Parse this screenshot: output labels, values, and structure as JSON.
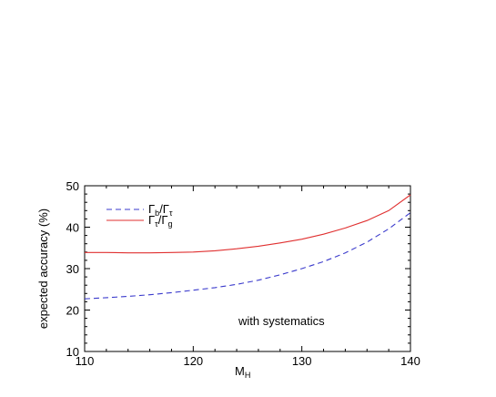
{
  "chart_data": {
    "type": "line",
    "title": "",
    "xlabel": "M",
    "xlabel_sub": "H",
    "ylabel": "expected accuracy (%)",
    "xlim": [
      110,
      140
    ],
    "ylim": [
      10,
      50
    ],
    "xticks": [
      "110",
      "120",
      "130",
      "140"
    ],
    "yticks": [
      "10",
      "20",
      "30",
      "40",
      "50"
    ],
    "grid": false,
    "legend_position": "top-left",
    "annotation": "with systematics",
    "series": [
      {
        "name": "Γb/Γτ",
        "name_main": "Γ",
        "name_sub1": "b",
        "name_mid": "/Γ",
        "name_sub2": "τ",
        "color": "#3a3acc",
        "style": "dashed",
        "x": [
          110,
          112,
          114,
          116,
          118,
          120,
          122,
          124,
          126,
          128,
          130,
          132,
          134,
          136,
          138,
          140
        ],
        "y": [
          22.7,
          23.0,
          23.3,
          23.7,
          24.2,
          24.8,
          25.4,
          26.2,
          27.2,
          28.5,
          30.0,
          31.7,
          33.8,
          36.4,
          39.6,
          43.5
        ]
      },
      {
        "name": "Γτ/Γg",
        "name_main": "Γ",
        "name_sub1": "τ",
        "name_mid": "/Γ",
        "name_sub2": "g",
        "color": "#e03030",
        "style": "solid",
        "x": [
          110,
          112,
          114,
          116,
          118,
          120,
          122,
          124,
          126,
          128,
          130,
          132,
          134,
          136,
          138,
          140
        ],
        "y": [
          33.9,
          33.9,
          33.8,
          33.8,
          33.9,
          34.0,
          34.3,
          34.8,
          35.4,
          36.2,
          37.1,
          38.3,
          39.8,
          41.6,
          44.0,
          47.8
        ]
      }
    ]
  }
}
